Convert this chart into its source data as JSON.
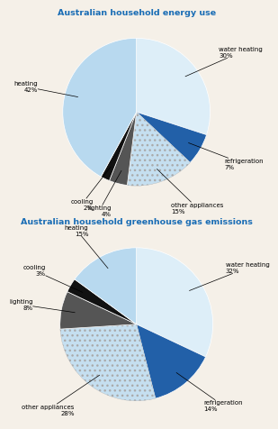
{
  "chart1": {
    "title": "Australian household energy use",
    "labels": [
      "water heating",
      "refrigeration",
      "other appliances",
      "lighting",
      "cooling",
      "heating"
    ],
    "values": [
      30,
      7,
      15,
      4,
      2,
      42
    ],
    "colors": [
      "#ddeef8",
      "#2260a8",
      "#c5dff0",
      "#555555",
      "#111111",
      "#b8d9ef"
    ],
    "hatches": [
      "",
      "",
      "...",
      "",
      "",
      ""
    ],
    "startangle": 90
  },
  "chart2": {
    "title": "Australian household greenhouse gas emissions",
    "labels": [
      "water heating",
      "refrigeration",
      "other appliances",
      "lighting",
      "cooling",
      "heating"
    ],
    "values": [
      32,
      14,
      28,
      8,
      3,
      15
    ],
    "colors": [
      "#ddeef8",
      "#2260a8",
      "#c5dff0",
      "#555555",
      "#111111",
      "#b8d9ef"
    ],
    "hatches": [
      "",
      "",
      "...",
      "",
      "",
      ""
    ],
    "startangle": 90
  },
  "title_color": "#1a6db5",
  "label_fontsize": 5.0,
  "title_fontsize": 6.8,
  "bg_color": "#f5f0e8"
}
